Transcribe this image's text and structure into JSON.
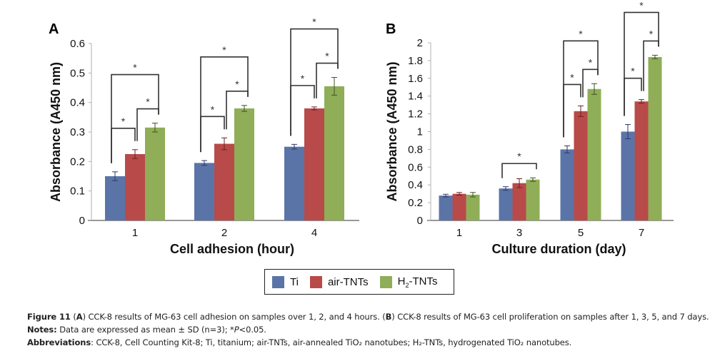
{
  "legend": [
    {
      "label": "Ti",
      "color": "#5B74A8"
    },
    {
      "label": "air-TNTs",
      "color": "#B84A4A"
    },
    {
      "label": "H2-TNTs",
      "label_main": "H",
      "label_sub": "2",
      "label_rest": "-TNTs",
      "color": "#8FAE57"
    }
  ],
  "chart_data": [
    {
      "type": "bar",
      "panel": "A",
      "title": "",
      "xlabel": "Cell adhesion (hour)",
      "ylabel": "Absorbance (A450 nm)",
      "ylim": [
        0,
        0.6
      ],
      "yticks": [
        "0",
        "0.1",
        "0.2",
        "0.3",
        "0.4",
        "0.5",
        "0.6"
      ],
      "grid": false,
      "categories": [
        "1",
        "2",
        "4"
      ],
      "series": [
        {
          "name": "Ti",
          "values": [
            0.15,
            0.195,
            0.25
          ],
          "errors": [
            0.015,
            0.008,
            0.008
          ]
        },
        {
          "name": "air-TNTs",
          "values": [
            0.225,
            0.26,
            0.38
          ],
          "errors": [
            0.015,
            0.02,
            0.005
          ]
        },
        {
          "name": "H2-TNTs",
          "values": [
            0.315,
            0.38,
            0.455
          ],
          "errors": [
            0.015,
            0.01,
            0.03
          ]
        }
      ],
      "significance": [
        {
          "category": "1",
          "pairs": [
            [
              "Ti",
              "air-TNTs"
            ],
            [
              "air-TNTs",
              "H2-TNTs"
            ],
            [
              "Ti",
              "H2-TNTs"
            ]
          ],
          "label": "*"
        },
        {
          "category": "2",
          "pairs": [
            [
              "Ti",
              "air-TNTs"
            ],
            [
              "air-TNTs",
              "H2-TNTs"
            ],
            [
              "Ti",
              "H2-TNTs"
            ]
          ],
          "label": "*"
        },
        {
          "category": "4",
          "pairs": [
            [
              "Ti",
              "air-TNTs"
            ],
            [
              "air-TNTs",
              "H2-TNTs"
            ],
            [
              "Ti",
              "H2-TNTs"
            ]
          ],
          "label": "*"
        }
      ]
    },
    {
      "type": "bar",
      "panel": "B",
      "title": "",
      "xlabel": "Culture duration (day)",
      "ylabel": "Absorbance (A450 nm)",
      "ylim": [
        0,
        2
      ],
      "yticks": [
        "0",
        "0.2",
        "0.4",
        "0.6",
        "0.8",
        "1",
        "1.2",
        "1.4",
        "1.6",
        "1.8",
        "2"
      ],
      "grid": false,
      "categories": [
        "1",
        "3",
        "5",
        "7"
      ],
      "series": [
        {
          "name": "Ti",
          "values": [
            0.28,
            0.36,
            0.8,
            1.0
          ],
          "errors": [
            0.015,
            0.02,
            0.04,
            0.08
          ]
        },
        {
          "name": "air-TNTs",
          "values": [
            0.3,
            0.42,
            1.23,
            1.34
          ],
          "errors": [
            0.015,
            0.05,
            0.06,
            0.02
          ]
        },
        {
          "name": "H2-TNTs",
          "values": [
            0.29,
            0.46,
            1.48,
            1.84
          ],
          "errors": [
            0.025,
            0.02,
            0.06,
            0.02
          ]
        }
      ],
      "significance": [
        {
          "category": "3",
          "pairs": [
            [
              "Ti",
              "H2-TNTs"
            ]
          ],
          "label": "*"
        },
        {
          "category": "5",
          "pairs": [
            [
              "Ti",
              "air-TNTs"
            ],
            [
              "air-TNTs",
              "H2-TNTs"
            ],
            [
              "Ti",
              "H2-TNTs"
            ]
          ],
          "label": "*"
        },
        {
          "category": "7",
          "pairs": [
            [
              "Ti",
              "air-TNTs"
            ],
            [
              "air-TNTs",
              "H2-TNTs"
            ],
            [
              "Ti",
              "H2-TNTs"
            ]
          ],
          "label": "*"
        }
      ]
    }
  ],
  "caption": {
    "figure_label": "Figure 11",
    "line1_a": "(",
    "panel_a": "A",
    "line1_b": ") CCK-8 results of MG-63 cell adhesion on samples over 1, 2, and 4 hours. (",
    "panel_b": "B",
    "line1_c": ") CCK-8 results of MG-63 cell proliferation on samples after 1, 3, 5, and 7 days.",
    "notes_label": "Notes:",
    "notes_text": "Data are expressed as mean ± SD (n=3); *",
    "notes_p": "P",
    "notes_end": "<0.05.",
    "abbr_label": "Abbreviations",
    "abbr_text": ": CCK-8, Cell Counting Kit-8; Ti, titanium; air-TNTs, air-annealed TiO₂ nanotubes; H₂-TNTs, hydrogenated TiO₂ nanotubes."
  }
}
